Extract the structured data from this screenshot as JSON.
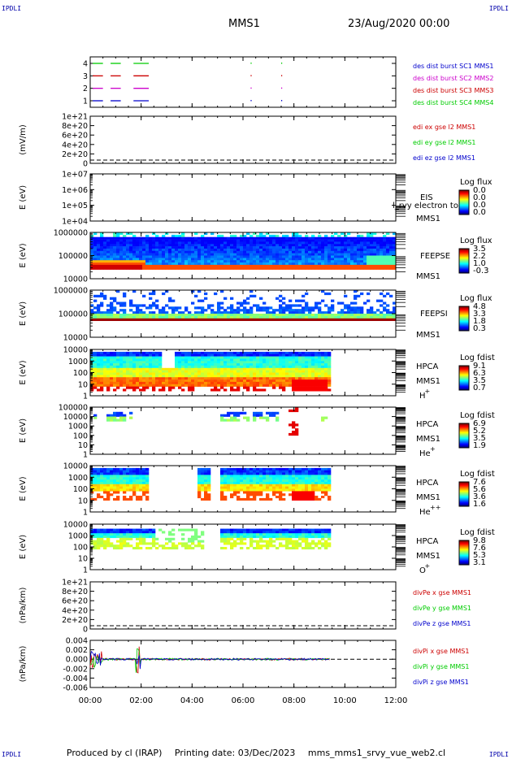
{
  "header": {
    "mission": "MMS1",
    "date": "23/Aug/2020 00:00",
    "corner_tl": "IPDLI",
    "corner_tr": "IPDLI",
    "corner_bl": "IPDLI",
    "corner_br": "IPDLI"
  },
  "footer": {
    "produced": "Produced by cl (IRAP)",
    "printing": "Printing date: 03/Dec/2023",
    "file": "mms_mms1_srvy_vue_web2.cl"
  },
  "x_axis": {
    "unit": "hours",
    "range": [
      0,
      12
    ],
    "ticks": [
      0,
      2,
      4,
      6,
      8,
      10,
      12
    ],
    "tick_labels": [
      "00:00",
      "02:00",
      "04:00",
      "06:00",
      "08:00",
      "10:00",
      "12:00"
    ]
  },
  "colors": {
    "mms1": "#0000cc",
    "mms2": "#cc00cc",
    "mms3": "#cc0000",
    "mms4": "#00cc00",
    "x_comp": "#cc0000",
    "y_comp": "#00cc00",
    "z_comp": "#0000cc"
  },
  "chart_data": [
    {
      "type": "line",
      "panel": "burst",
      "yticks": [
        "1",
        "2",
        "3",
        "4"
      ],
      "legend": [
        "des dist burst SC1 MMS1",
        "des dist burst SC2 MMS2",
        "des dist burst SC3 MMS3",
        "des dist burst SC4 MMS4"
      ],
      "series": [
        {
          "name": "des dist burst SC1 MMS1",
          "level": 1,
          "segments": [
            [
              0.1,
              0.5
            ],
            [
              0.8,
              1.2
            ],
            [
              1.7,
              2.3
            ]
          ]
        },
        {
          "name": "des dist burst SC2 MMS2",
          "level": 2,
          "segments": [
            [
              0.1,
              0.5
            ],
            [
              0.8,
              1.2
            ],
            [
              1.7,
              2.3
            ]
          ]
        },
        {
          "name": "des dist burst SC3 MMS3",
          "level": 3,
          "segments": [
            [
              0.1,
              0.5
            ],
            [
              0.8,
              1.2
            ],
            [
              1.7,
              2.3
            ]
          ]
        },
        {
          "name": "des dist burst SC4 MMS4",
          "level": 4,
          "segments": [
            [
              0.1,
              0.5
            ],
            [
              0.8,
              1.2
            ],
            [
              1.7,
              2.3
            ]
          ]
        }
      ]
    },
    {
      "type": "line",
      "panel": "edi",
      "ylabel": "(mV/m)",
      "yticks": [
        "1e+21",
        "8e+20",
        "6e+20",
        "4e+20",
        "2e+20",
        "0"
      ],
      "legend": [
        "edi ex gse l2 MMS1",
        "edi ey gse l2 MMS1",
        "edi ez gse l2 MMS1"
      ]
    },
    {
      "type": "heatmap",
      "panel": "eis",
      "ylabel": "E (eV)",
      "yticks": [
        "1e+07",
        "1e+06",
        "1e+05",
        "1e+04"
      ],
      "labels": [
        "EIS",
        "MMS1"
      ],
      "overlay_text": "l_rvy electron to",
      "colorbar": {
        "title": "Log flux",
        "ticks": [
          "0.0",
          "0.0",
          "0.0",
          "0.0"
        ]
      }
    },
    {
      "type": "heatmap",
      "panel": "feepse",
      "ylabel": "E (eV)",
      "yticks": [
        "1000000",
        "100000",
        "10000"
      ],
      "labels": [
        "FEEPSE",
        "MMS1"
      ],
      "colorbar": {
        "title": "Log flux",
        "ticks": [
          "3.5",
          "2.2",
          "1.0",
          "-0.3"
        ]
      }
    },
    {
      "type": "heatmap",
      "panel": "feepsi",
      "ylabel": "E (eV)",
      "yticks": [
        "1000000",
        "100000",
        "10000"
      ],
      "labels": [
        "FEEPSI",
        "MMS1"
      ],
      "colorbar": {
        "title": "Log flux",
        "ticks": [
          "4.8",
          "3.3",
          "1.8",
          "0.3"
        ]
      }
    },
    {
      "type": "heatmap",
      "panel": "hpca_h",
      "ylabel": "E (eV)",
      "yticks": [
        "10000",
        "1000",
        "100",
        "10",
        "1"
      ],
      "labels": [
        "HPCA",
        "MMS1",
        "H",
        "+"
      ],
      "colorbar": {
        "title": "Log fdist",
        "ticks": [
          "9.1",
          "6.3",
          "3.5",
          "0.7"
        ]
      }
    },
    {
      "type": "heatmap",
      "panel": "hpca_he",
      "ylabel": "E (eV)",
      "yticks": [
        "100000",
        "10000",
        "1000",
        "100",
        "10",
        "1"
      ],
      "labels": [
        "HPCA",
        "MMS1",
        "He",
        "+"
      ],
      "colorbar": {
        "title": "Log fdist",
        "ticks": [
          "6.9",
          "5.2",
          "3.5",
          "1.9"
        ]
      }
    },
    {
      "type": "heatmap",
      "panel": "hpca_hepp",
      "ylabel": "E (eV)",
      "yticks": [
        "10000",
        "1000",
        "100",
        "10",
        "1"
      ],
      "labels": [
        "HPCA",
        "MMS1",
        "He",
        "++"
      ],
      "colorbar": {
        "title": "Log fdist",
        "ticks": [
          "7.6",
          "5.6",
          "3.6",
          "1.6"
        ]
      }
    },
    {
      "type": "heatmap",
      "panel": "hpca_o",
      "ylabel": "E (eV)",
      "yticks": [
        "10000",
        "1000",
        "100",
        "10",
        "1"
      ],
      "labels": [
        "HPCA",
        "MMS1",
        "O",
        "+"
      ],
      "colorbar": {
        "title": "Log fdist",
        "ticks": [
          "9.8",
          "7.6",
          "5.3",
          "3.1"
        ]
      }
    },
    {
      "type": "line",
      "panel": "divpe",
      "ylabel": "(nPa/km)",
      "yticks": [
        "1e+21",
        "8e+20",
        "6e+20",
        "4e+20",
        "2e+20",
        "0"
      ],
      "legend": [
        "divPe x gse MMS1",
        "divPe y gse MMS1",
        "divPe z gse MMS1"
      ]
    },
    {
      "type": "line",
      "panel": "divpi",
      "ylabel": "(nPa/km)",
      "yticks": [
        "0.004",
        "0.002",
        "0.000",
        "-0.002",
        "-0.004",
        "-0.006"
      ],
      "yvalues": [
        0.004,
        0.002,
        0.0,
        -0.002,
        -0.004,
        -0.006
      ],
      "legend": [
        "divPi x gse MMS1",
        "divPi y gse MMS1",
        "divPi z gse MMS1"
      ]
    }
  ]
}
